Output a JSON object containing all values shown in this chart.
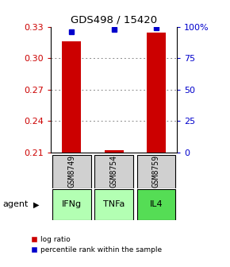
{
  "title": "GDS498 / 15420",
  "samples": [
    "GSM8749",
    "GSM8754",
    "GSM8759"
  ],
  "agents": [
    "IFNg",
    "TNFa",
    "IL4"
  ],
  "log_ratios": [
    0.316,
    0.212,
    0.324
  ],
  "percentile_ranks": [
    96,
    98,
    99
  ],
  "ylim_left": [
    0.21,
    0.33
  ],
  "ylim_right": [
    0,
    100
  ],
  "yticks_left": [
    0.21,
    0.24,
    0.27,
    0.3,
    0.33
  ],
  "yticks_right": [
    0,
    25,
    50,
    75,
    100
  ],
  "ytick_labels_left": [
    "0.21",
    "0.24",
    "0.27",
    "0.30",
    "0.33"
  ],
  "ytick_labels_right": [
    "0",
    "25",
    "50",
    "75",
    "100%"
  ],
  "bar_color": "#cc0000",
  "marker_color": "#0000cc",
  "sample_box_color": "#d0d0d0",
  "agent_box_colors": [
    "#b3ffb3",
    "#b3ffb3",
    "#55dd55"
  ],
  "grid_color": "#888888",
  "x_positions": [
    1,
    2,
    3
  ],
  "bar_width": 0.45
}
